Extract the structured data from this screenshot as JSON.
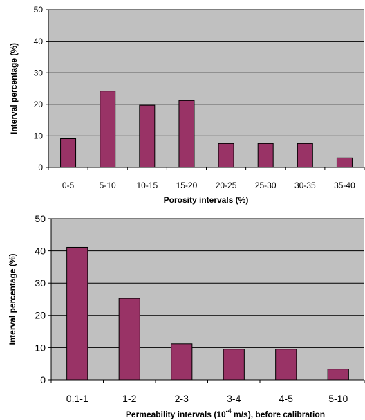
{
  "chart_data": [
    {
      "type": "bar",
      "categories": [
        "0-5",
        "5-10",
        "10-15",
        "15-20",
        "20-25",
        "25-30",
        "30-35",
        "35-40"
      ],
      "values": [
        9.1,
        24.2,
        19.7,
        21.2,
        7.6,
        7.6,
        7.6,
        3.0
      ],
      "xlabel": "Porosity intervals (%)",
      "ylabel": "Interval percentage (%)",
      "ylim": [
        0,
        50
      ],
      "yticks": [
        0,
        10,
        20,
        30,
        40,
        50
      ],
      "grid": true,
      "colors": {
        "bar": "#993366",
        "plot_bg": "#c0c0c0",
        "grid": "#000000"
      }
    },
    {
      "type": "bar",
      "categories": [
        "0.1-1",
        "1-2",
        "2-3",
        "3-4",
        "4-5",
        "5-10"
      ],
      "values": [
        41.1,
        25.3,
        11.2,
        9.5,
        9.5,
        3.3
      ],
      "xlabel_parts": {
        "before": "Permeability intervals (10",
        "sup": "-4",
        "after": " m/s), before calibration"
      },
      "ylabel": "Interval percentage (%)",
      "ylim": [
        0,
        50
      ],
      "yticks": [
        0,
        10,
        20,
        30,
        40,
        50
      ],
      "grid": true,
      "colors": {
        "bar": "#993366",
        "plot_bg": "#c0c0c0",
        "grid": "#000000"
      }
    }
  ]
}
